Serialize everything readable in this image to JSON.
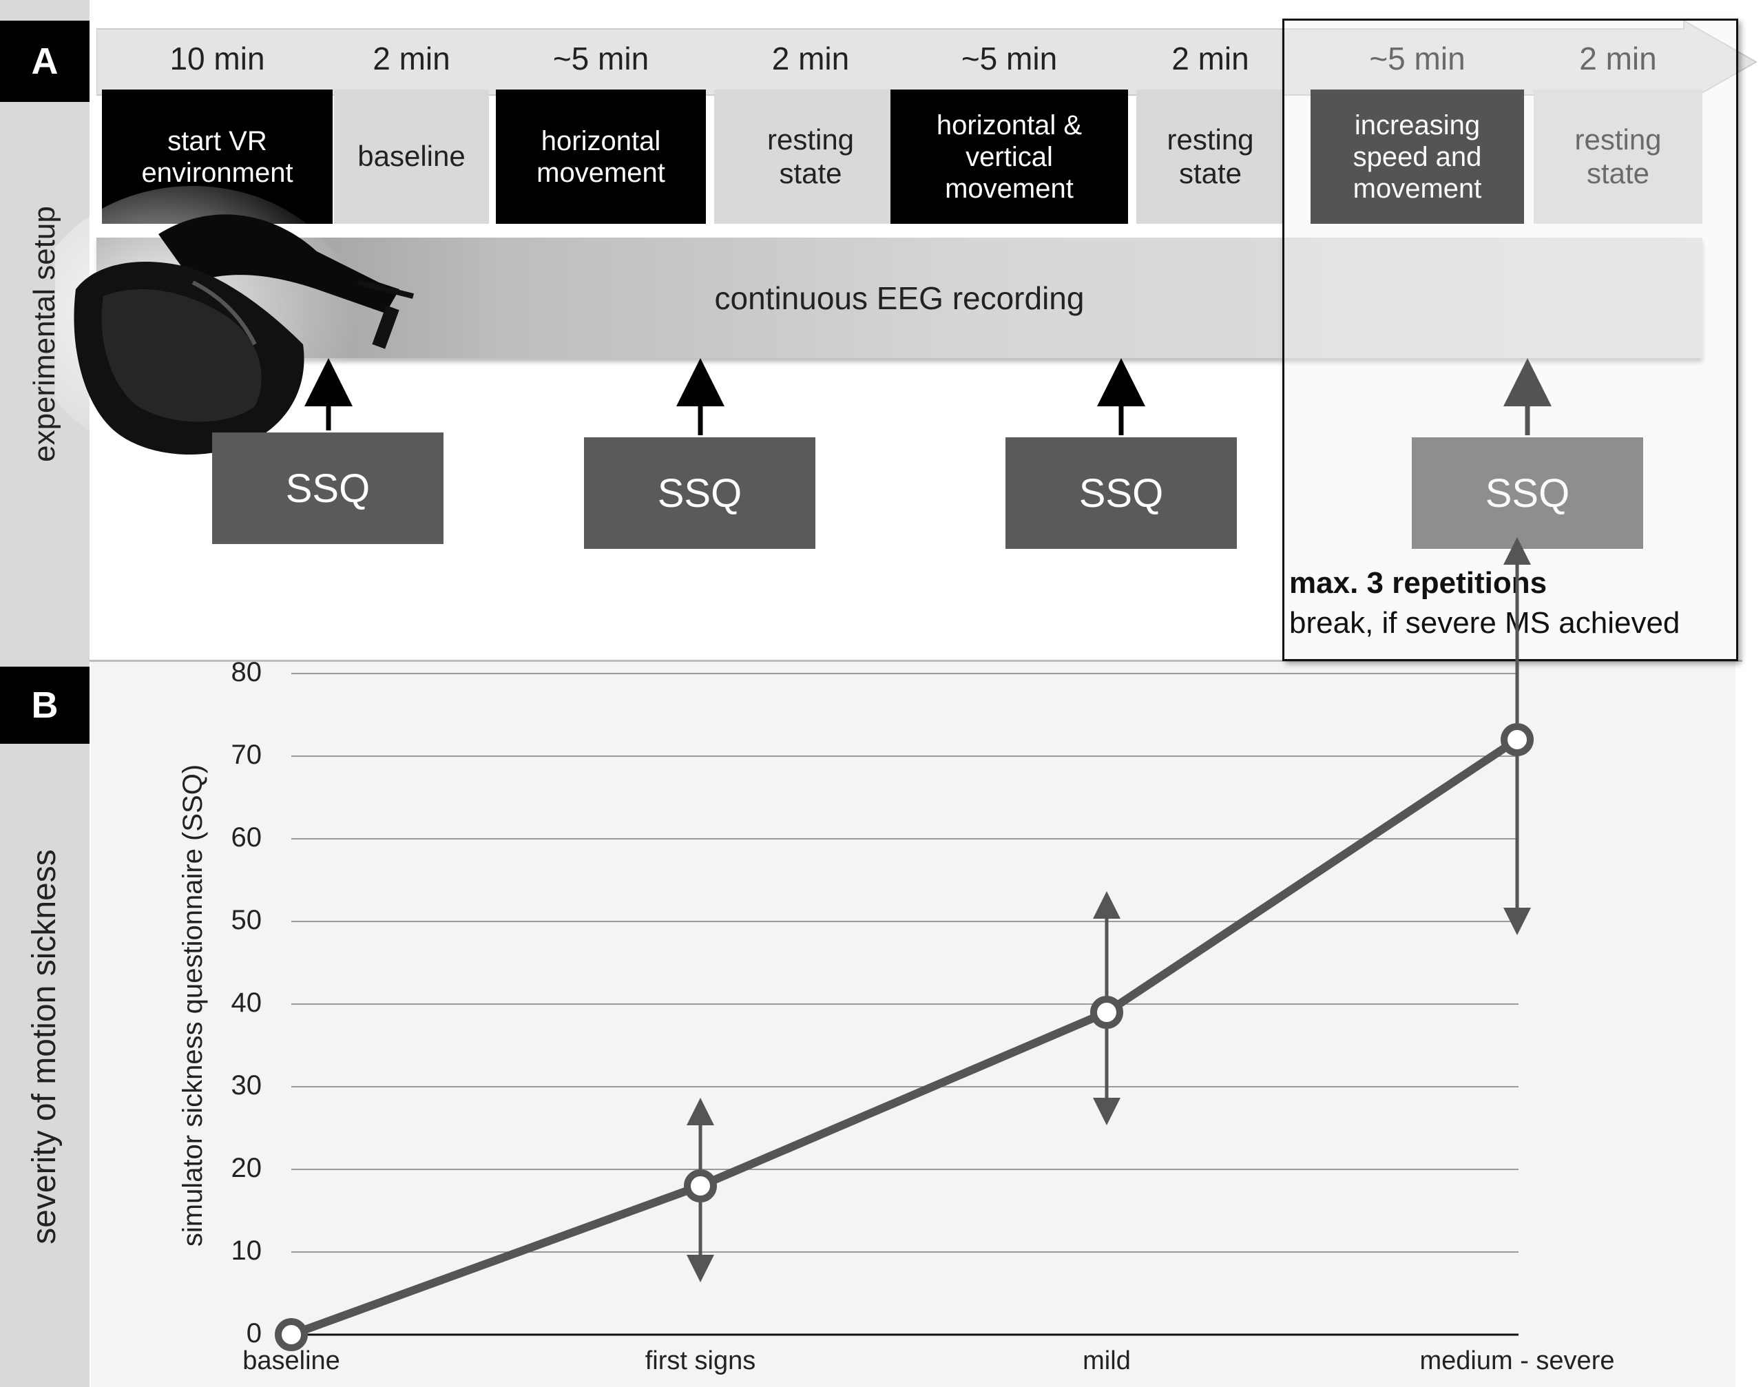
{
  "panel_a": {
    "letter": "A",
    "side_label": "experimental setup",
    "durations": [
      "10 min",
      "2 min",
      "~5 min",
      "2 min",
      "~5 min",
      "2 min",
      "~5 min",
      "2 min"
    ],
    "phases": [
      {
        "label": "start VR\nenvironment",
        "style": "dark"
      },
      {
        "label": "baseline",
        "style": "light"
      },
      {
        "label": "horizontal\nmovement",
        "style": "dark"
      },
      {
        "label": "resting\nstate",
        "style": "light"
      },
      {
        "label": "horizontal &\nvertical\nmovement",
        "style": "dark"
      },
      {
        "label": "resting\nstate",
        "style": "light"
      },
      {
        "label": "increasing\nspeed and\nmovement",
        "style": "dark"
      },
      {
        "label": "resting\nstate",
        "style": "light"
      }
    ],
    "eeg_label": "continuous EEG recording",
    "ssq_labels": [
      "SSQ",
      "SSQ",
      "SSQ",
      "SSQ"
    ],
    "repetition_title": "max. 3 repetitions",
    "repetition_note": "break, if severe MS achieved",
    "headset_icon": "vr-headset-icon"
  },
  "panel_b": {
    "letter": "B",
    "side_label": "severity of motion sickness"
  },
  "chart_data": {
    "type": "line",
    "categories": [
      "baseline",
      "first signs",
      "mild",
      "medium - severe"
    ],
    "values": [
      0,
      18,
      39,
      72
    ],
    "error_low": [
      0,
      8,
      27,
      50
    ],
    "error_high": [
      0,
      27,
      52,
      72
    ],
    "ylabel": "simulator sickness questionnaire (SSQ)",
    "xlabel": "",
    "ylim": [
      0,
      80
    ],
    "yticks": [
      0,
      10,
      20,
      30,
      40,
      50,
      60,
      70,
      80
    ],
    "grid": true,
    "line_color": "#555555"
  }
}
